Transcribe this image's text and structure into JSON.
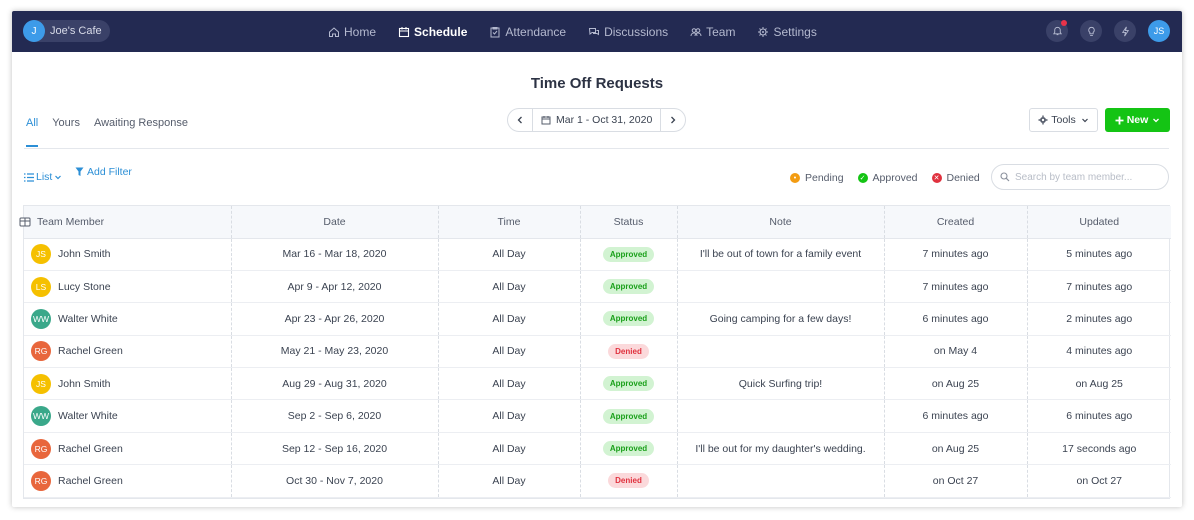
{
  "app": {
    "workspace_initial": "J",
    "workspace_name": "Joe's Cafe",
    "user_initials": "JS"
  },
  "nav": [
    {
      "label": "Home",
      "icon": "home-icon",
      "active": false
    },
    {
      "label": "Schedule",
      "icon": "calendar-icon",
      "active": true
    },
    {
      "label": "Attendance",
      "icon": "clipboard-icon",
      "active": false
    },
    {
      "label": "Discussions",
      "icon": "chat-icon",
      "active": false
    },
    {
      "label": "Team",
      "icon": "team-icon",
      "active": false
    },
    {
      "label": "Settings",
      "icon": "gear-icon",
      "active": false
    }
  ],
  "page": {
    "title": "Time Off Requests"
  },
  "tabs": [
    "All",
    "Yours",
    "Awaiting Response"
  ],
  "date_range": "Mar 1 - Oct 31, 2020",
  "buttons": {
    "tools": "Tools",
    "new": "New",
    "list": "List",
    "add_filter": "Add Filter"
  },
  "legend": {
    "pending": "Pending",
    "approved": "Approved",
    "denied": "Denied"
  },
  "search": {
    "placeholder": "Search by team member..."
  },
  "colors": {
    "approved_bg": "#d2f3d2",
    "approved_fg": "#1aa01a",
    "denied_bg": "#fbd9db",
    "denied_fg": "#e0313e",
    "pending": "#f39c12"
  },
  "table": {
    "columns": [
      "Team Member",
      "Date",
      "Time",
      "Status",
      "Note",
      "Created",
      "Updated"
    ],
    "rows": [
      {
        "initials": "JS",
        "avatar_color": "#f5c000",
        "member": "John Smith",
        "date": "Mar 16 - Mar 18, 2020",
        "time": "All Day",
        "status": "Approved",
        "note": "I'll be out of town for a family event",
        "created": "7 minutes ago",
        "updated": "5 minutes ago"
      },
      {
        "initials": "LS",
        "avatar_color": "#f5c000",
        "member": "Lucy Stone",
        "date": "Apr 9 - Apr 12, 2020",
        "time": "All Day",
        "status": "Approved",
        "note": "",
        "created": "7 minutes ago",
        "updated": "7 minutes ago"
      },
      {
        "initials": "WW",
        "avatar_color": "#3aa88a",
        "member": "Walter White",
        "date": "Apr 23 - Apr 26, 2020",
        "time": "All Day",
        "status": "Approved",
        "note": "Going camping for a few days!",
        "created": "6 minutes ago",
        "updated": "2 minutes ago"
      },
      {
        "initials": "RG",
        "avatar_color": "#e8663c",
        "member": "Rachel Green",
        "date": "May 21 - May 23, 2020",
        "time": "All Day",
        "status": "Denied",
        "note": "",
        "created": "on May 4",
        "updated": "4 minutes ago"
      },
      {
        "initials": "JS",
        "avatar_color": "#f5c000",
        "member": "John Smith",
        "date": "Aug 29 - Aug 31, 2020",
        "time": "All Day",
        "status": "Approved",
        "note": "Quick Surfing trip!",
        "created": "on Aug 25",
        "updated": "on Aug 25"
      },
      {
        "initials": "WW",
        "avatar_color": "#3aa88a",
        "member": "Walter White",
        "date": "Sep 2 - Sep 6, 2020",
        "time": "All Day",
        "status": "Approved",
        "note": "",
        "created": "6 minutes ago",
        "updated": "6 minutes ago"
      },
      {
        "initials": "RG",
        "avatar_color": "#e8663c",
        "member": "Rachel Green",
        "date": "Sep 12 - Sep 16, 2020",
        "time": "All Day",
        "status": "Approved",
        "note": "I'll be out for my daughter's wedding.",
        "created": "on Aug 25",
        "updated": "17 seconds ago"
      },
      {
        "initials": "RG",
        "avatar_color": "#e8663c",
        "member": "Rachel Green",
        "date": "Oct 30 - Nov 7, 2020",
        "time": "All Day",
        "status": "Denied",
        "note": "",
        "created": "on Oct 27",
        "updated": "on Oct 27"
      }
    ]
  }
}
